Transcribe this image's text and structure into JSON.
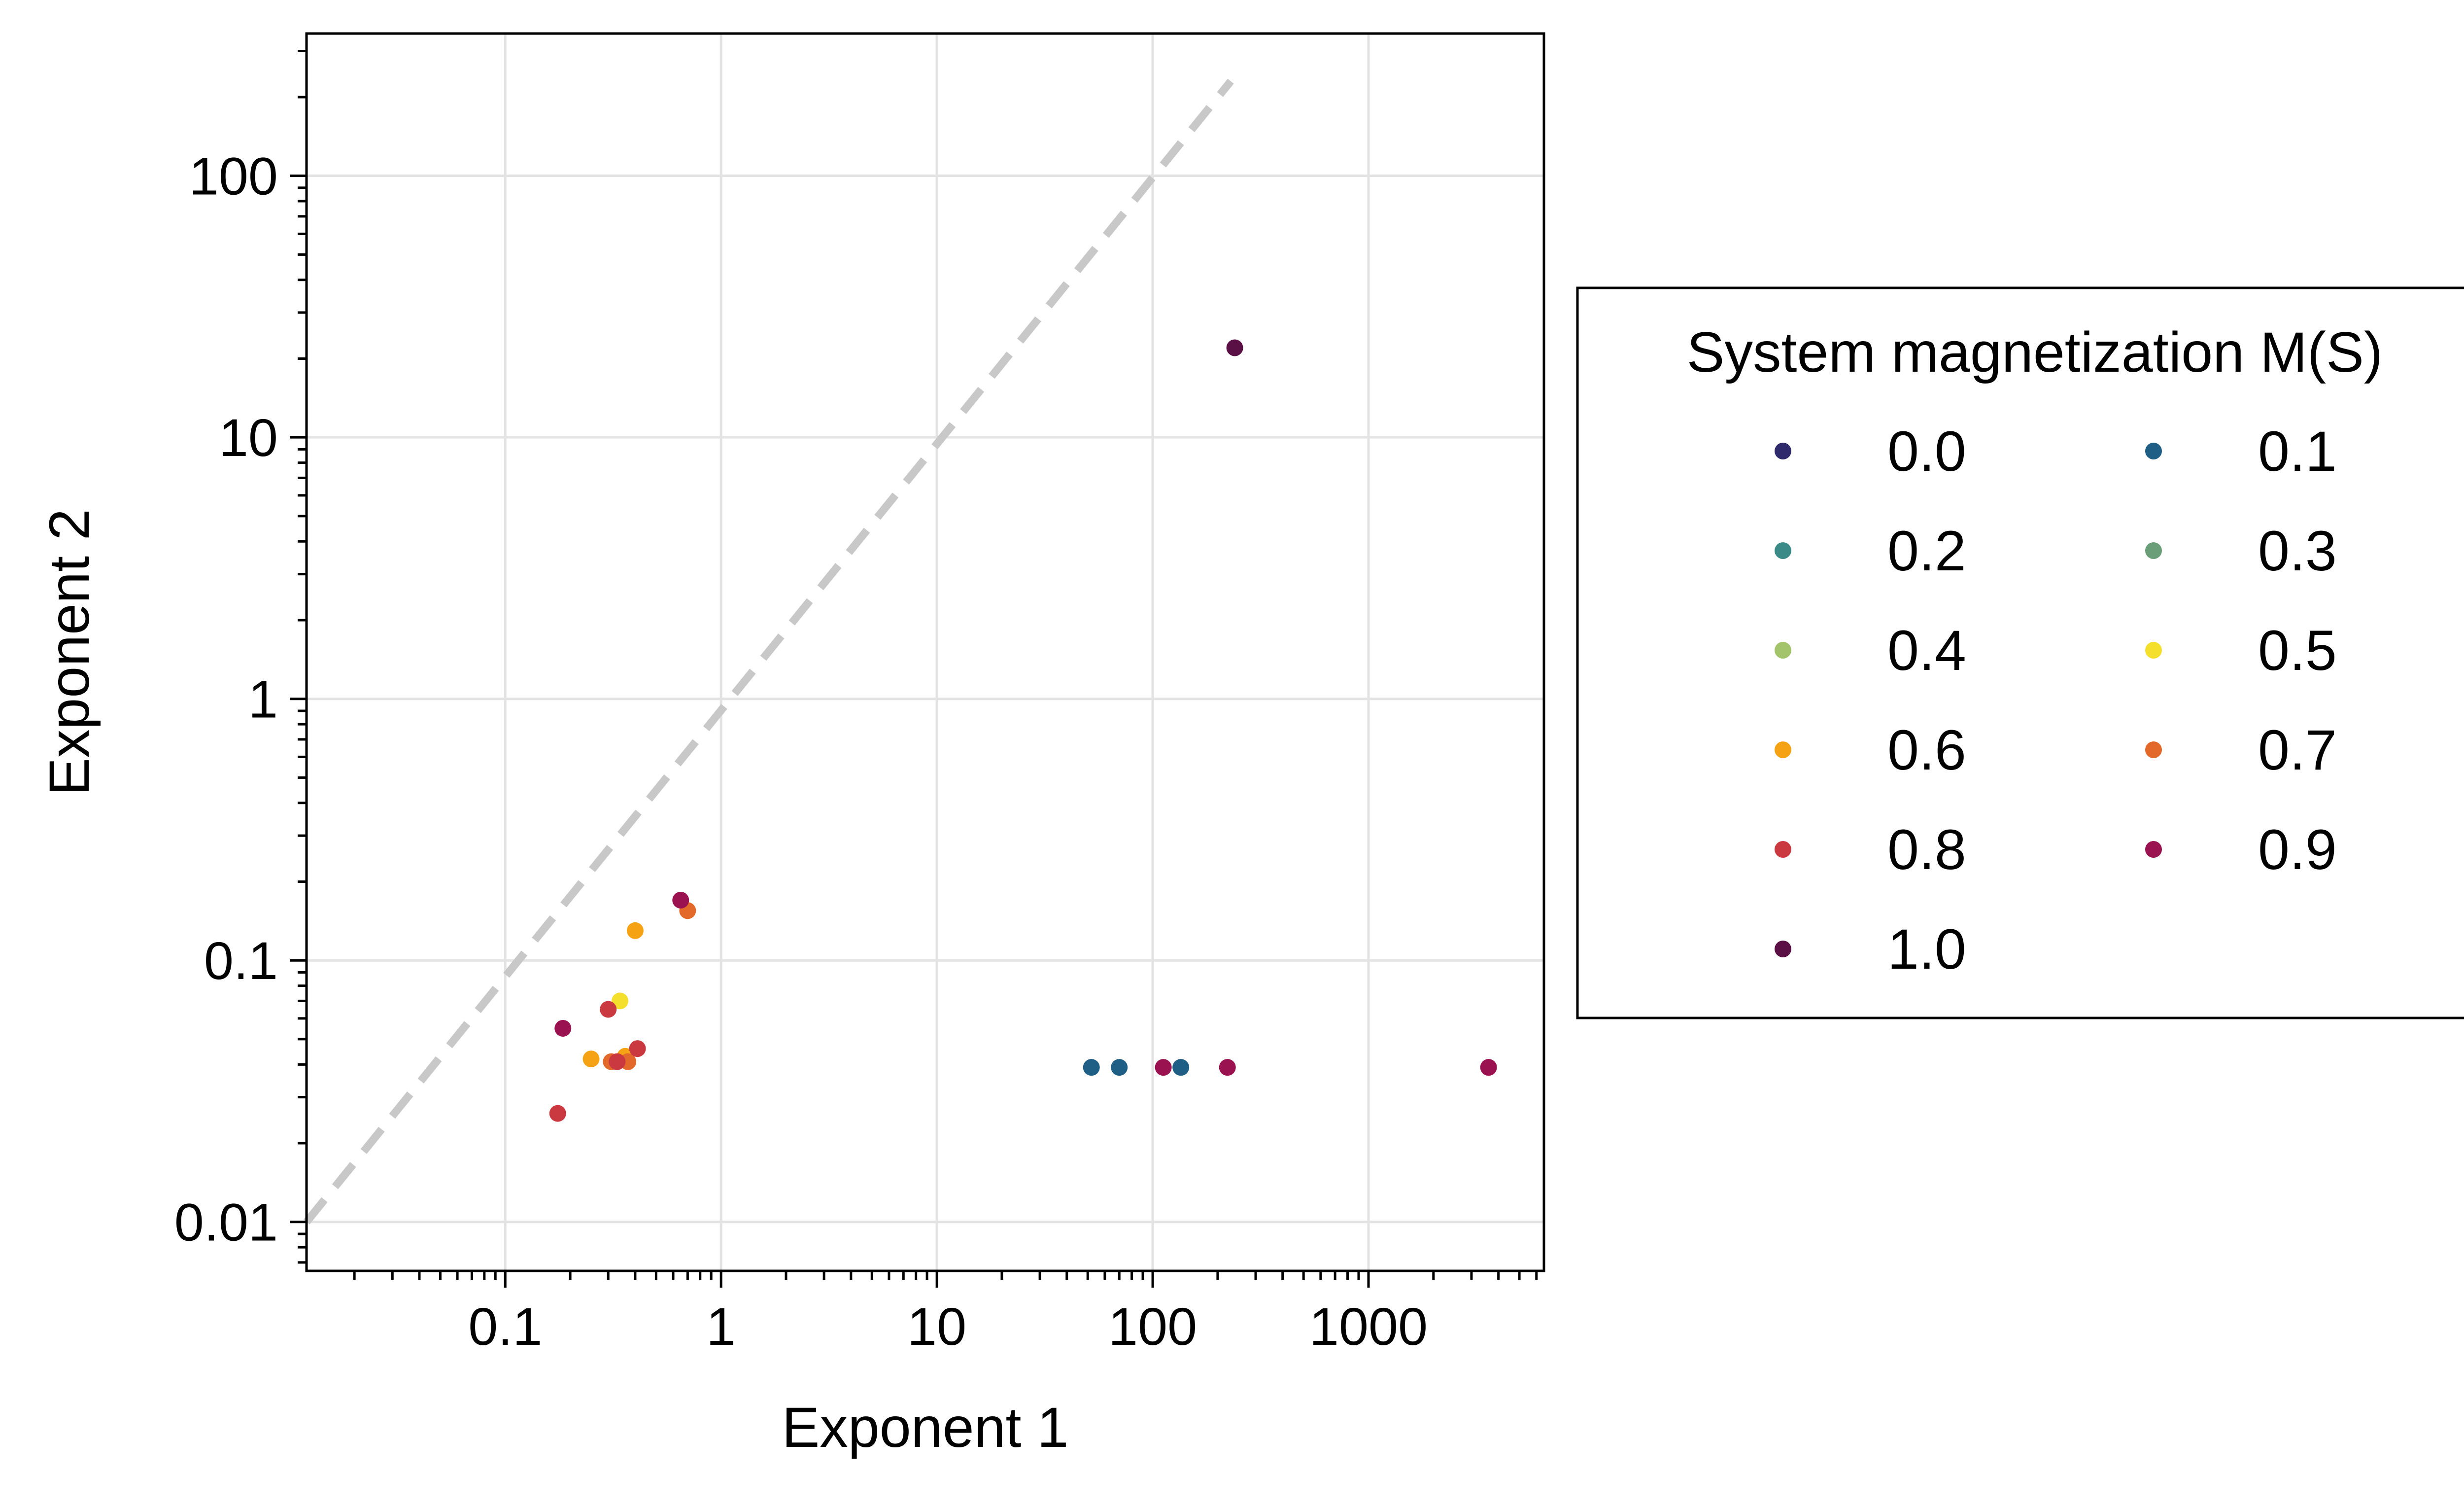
{
  "chart_data": {
    "type": "scatter",
    "title": "",
    "xlabel": "Exponent 1",
    "ylabel": "Exponent 2",
    "xscale": "log",
    "yscale": "log",
    "xlim": [
      0.012,
      6500
    ],
    "ylim": [
      0.0065,
      350
    ],
    "grid": true,
    "x_ticks": [
      {
        "value": 0.1,
        "label": "0.1"
      },
      {
        "value": 1,
        "label": "1"
      },
      {
        "value": 10,
        "label": "10"
      },
      {
        "value": 100,
        "label": "100"
      },
      {
        "value": 1000,
        "label": "1000"
      }
    ],
    "y_ticks": [
      {
        "value": 0.01,
        "label": "0.01"
      },
      {
        "value": 0.1,
        "label": "0.1"
      },
      {
        "value": 1,
        "label": "1"
      },
      {
        "value": 10,
        "label": "10"
      },
      {
        "value": 100,
        "label": "100"
      }
    ],
    "reference_line": {
      "style": "dashed",
      "color": "#c8c8c8",
      "x": [
        0.012,
        230
      ],
      "y": [
        0.01,
        230
      ]
    },
    "legend": {
      "title": "System magnetization M(S)",
      "placement": "right",
      "columns": 2
    },
    "series": [
      {
        "name": "0.0",
        "color": "#2f2a6b",
        "x": [],
        "y": []
      },
      {
        "name": "0.1",
        "color": "#1f5f85",
        "x": [
          52,
          70,
          135
        ],
        "y": [
          0.039,
          0.039,
          0.039
        ]
      },
      {
        "name": "0.2",
        "color": "#3a8a87",
        "x": [],
        "y": []
      },
      {
        "name": "0.3",
        "color": "#6a9e78",
        "x": [],
        "y": []
      },
      {
        "name": "0.4",
        "color": "#a3c46a",
        "x": [],
        "y": []
      },
      {
        "name": "0.5",
        "color": "#f4df2c",
        "x": [
          0.34
        ],
        "y": [
          0.07
        ]
      },
      {
        "name": "0.6",
        "color": "#f5a314",
        "x": [
          0.25,
          0.36,
          0.4
        ],
        "y": [
          0.042,
          0.043,
          0.13
        ]
      },
      {
        "name": "0.7",
        "color": "#e3692a",
        "x": [
          0.31,
          0.37,
          0.7
        ],
        "y": [
          0.041,
          0.041,
          0.155
        ]
      },
      {
        "name": "0.8",
        "color": "#c9393f",
        "x": [
          0.175,
          0.3,
          0.33,
          0.41
        ],
        "y": [
          0.026,
          0.065,
          0.041,
          0.046
        ]
      },
      {
        "name": "0.9",
        "color": "#9a1250",
        "x": [
          0.185,
          0.65,
          112,
          222,
          3600
        ],
        "y": [
          0.055,
          0.17,
          0.039,
          0.039,
          0.039
        ]
      },
      {
        "name": "1.0",
        "color": "#5a0f45",
        "x": [
          240
        ],
        "y": [
          22
        ]
      }
    ]
  }
}
